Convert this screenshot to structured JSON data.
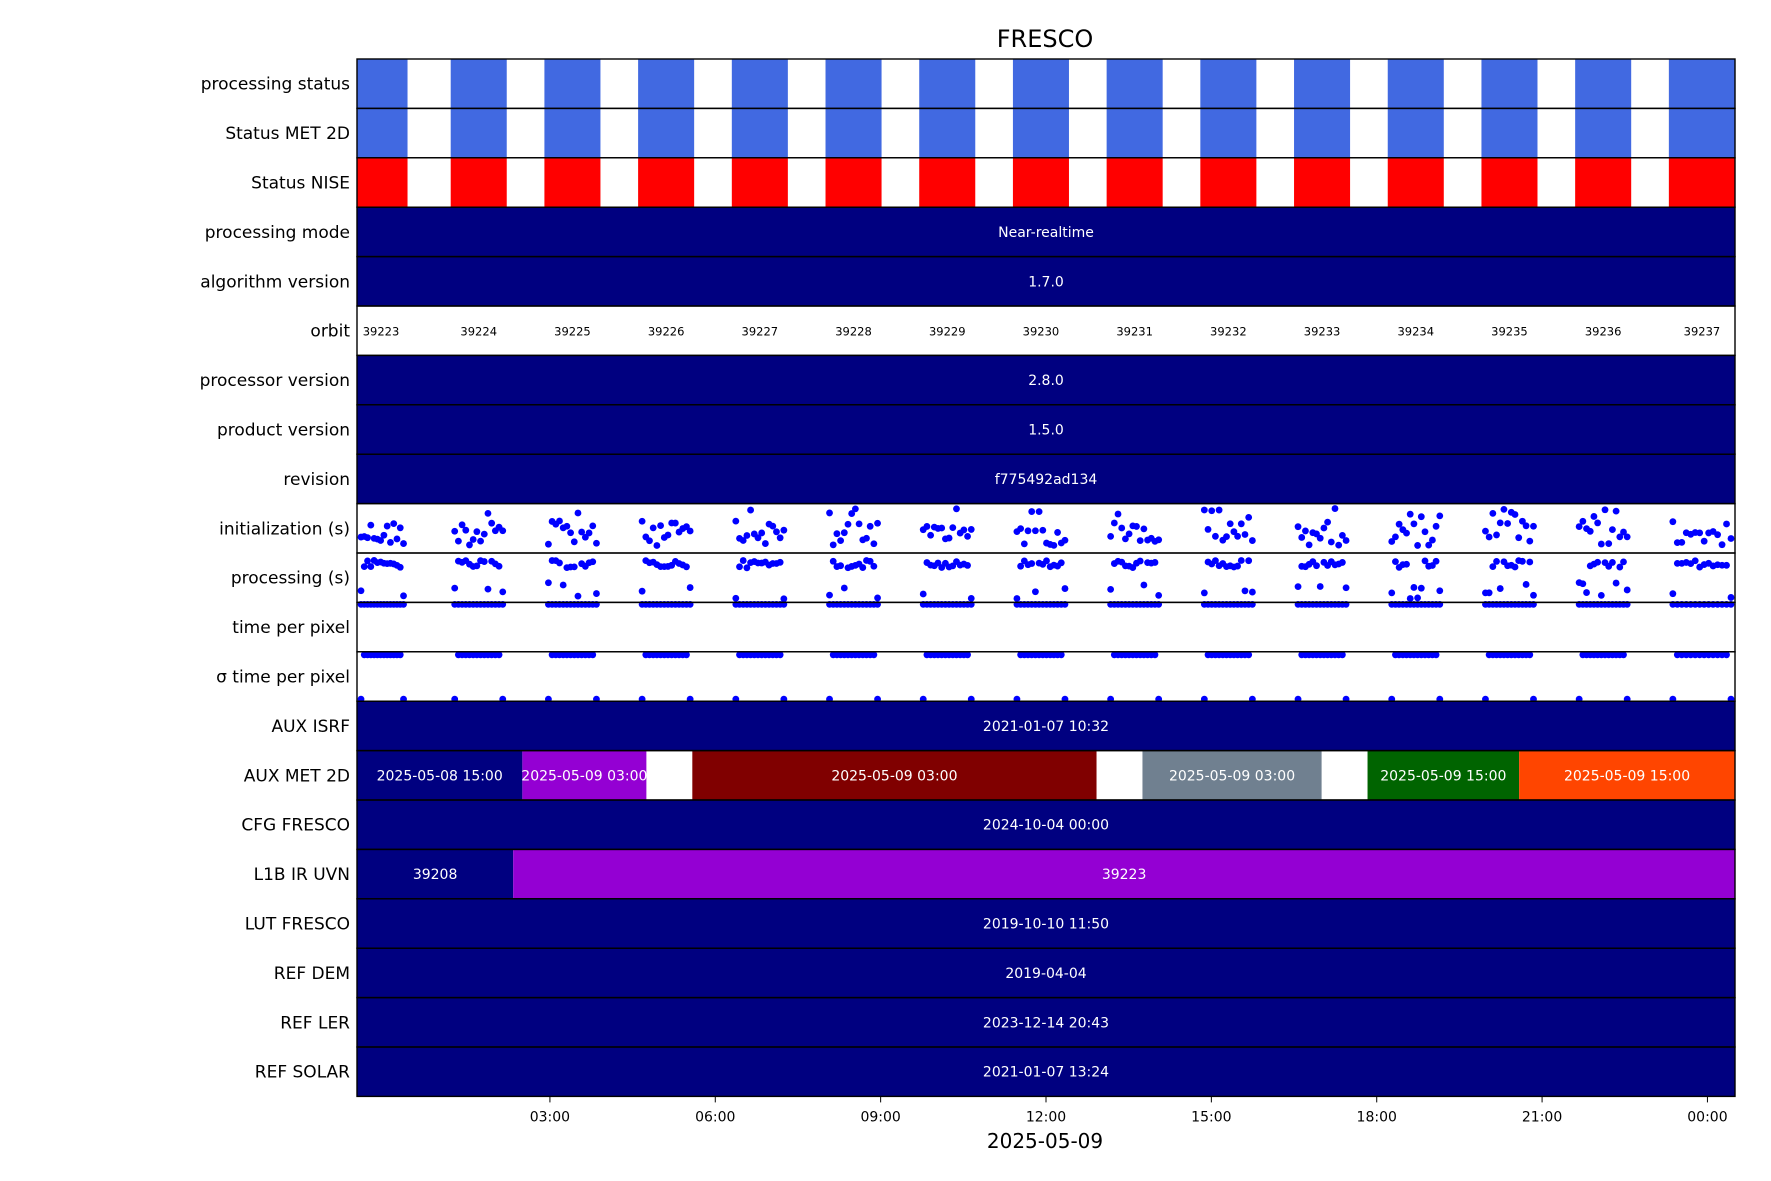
{
  "chart_data": {
    "type": "timeline",
    "title": "FRESCO",
    "xlabel": "2025-05-09",
    "x_range": [
      "2025-05-08 23:30",
      "2025-05-10 00:30"
    ],
    "x_ticks": [
      "03:00",
      "06:00",
      "09:00",
      "12:00",
      "15:00",
      "18:00",
      "21:00",
      "00:00"
    ],
    "x_tick_times": [
      "2025-05-09 03:00",
      "2025-05-09 06:00",
      "2025-05-09 09:00",
      "2025-05-09 12:00",
      "2025-05-09 15:00",
      "2025-05-09 18:00",
      "2025-05-09 21:00",
      "2025-05-10 00:00"
    ],
    "orbit_windows": [
      {
        "orbit": "39223",
        "start": "2025-05-08 23:30",
        "end": "2025-05-09 00:25"
      },
      {
        "orbit": "39224",
        "start": "2025-05-09 01:12",
        "end": "2025-05-09 02:13"
      },
      {
        "orbit": "39225",
        "start": "2025-05-09 02:54",
        "end": "2025-05-09 03:55"
      },
      {
        "orbit": "39226",
        "start": "2025-05-09 04:36",
        "end": "2025-05-09 05:37"
      },
      {
        "orbit": "39227",
        "start": "2025-05-09 06:18",
        "end": "2025-05-09 07:19"
      },
      {
        "orbit": "39228",
        "start": "2025-05-09 08:00",
        "end": "2025-05-09 09:01"
      },
      {
        "orbit": "39229",
        "start": "2025-05-09 09:42",
        "end": "2025-05-09 10:43"
      },
      {
        "orbit": "39230",
        "start": "2025-05-09 11:24",
        "end": "2025-05-09 12:25"
      },
      {
        "orbit": "39231",
        "start": "2025-05-09 13:06",
        "end": "2025-05-09 14:07"
      },
      {
        "orbit": "39232",
        "start": "2025-05-09 14:48",
        "end": "2025-05-09 15:49"
      },
      {
        "orbit": "39233",
        "start": "2025-05-09 16:30",
        "end": "2025-05-09 17:31"
      },
      {
        "orbit": "39234",
        "start": "2025-05-09 18:12",
        "end": "2025-05-09 19:13"
      },
      {
        "orbit": "39235",
        "start": "2025-05-09 19:54",
        "end": "2025-05-09 20:55"
      },
      {
        "orbit": "39236",
        "start": "2025-05-09 21:36",
        "end": "2025-05-09 22:37"
      },
      {
        "orbit": "39237",
        "start": "2025-05-09 23:18",
        "end": "2025-05-10 00:30"
      }
    ],
    "rows": [
      {
        "label": "processing status",
        "kind": "orbit_status",
        "color": "#4169e1"
      },
      {
        "label": "Status MET 2D",
        "kind": "orbit_status",
        "color": "#4169e1"
      },
      {
        "label": "Status NISE",
        "kind": "orbit_status",
        "color": "#ff0000"
      },
      {
        "label": "processing mode",
        "kind": "segments",
        "segments": [
          {
            "start": "2025-05-08 23:30",
            "end": "2025-05-10 00:30",
            "value": "Near-realtime",
            "color": "#000080"
          }
        ]
      },
      {
        "label": "algorithm version",
        "kind": "segments",
        "segments": [
          {
            "start": "2025-05-08 23:30",
            "end": "2025-05-10 00:30",
            "value": "1.7.0",
            "color": "#000080"
          }
        ]
      },
      {
        "label": "orbit",
        "kind": "orbit_labels"
      },
      {
        "label": "processor version",
        "kind": "segments",
        "segments": [
          {
            "start": "2025-05-08 23:30",
            "end": "2025-05-10 00:30",
            "value": "2.8.0",
            "color": "#000080"
          }
        ]
      },
      {
        "label": "product version",
        "kind": "segments",
        "segments": [
          {
            "start": "2025-05-08 23:30",
            "end": "2025-05-10 00:30",
            "value": "1.5.0",
            "color": "#000080"
          }
        ]
      },
      {
        "label": "revision",
        "kind": "segments",
        "segments": [
          {
            "start": "2025-05-08 23:30",
            "end": "2025-05-10 00:30",
            "value": "f775492ad134",
            "color": "#000080"
          }
        ]
      },
      {
        "label": "initialization (s)",
        "kind": "scatter",
        "pattern": "init"
      },
      {
        "label": "processing (s)",
        "kind": "scatter",
        "pattern": "proc"
      },
      {
        "label": "time per pixel",
        "kind": "scatter",
        "pattern": "tpp"
      },
      {
        "label": "σ time per pixel",
        "kind": "scatter",
        "pattern": "sigma"
      },
      {
        "label": "AUX ISRF",
        "kind": "segments",
        "segments": [
          {
            "start": "2025-05-08 23:30",
            "end": "2025-05-10 00:30",
            "value": "2021-01-07 10:32",
            "color": "#000080"
          }
        ]
      },
      {
        "label": "AUX MET 2D",
        "kind": "segments",
        "segments": [
          {
            "start": "2025-05-08 23:30",
            "end": "2025-05-09 02:30",
            "value": "2025-05-08 15:00",
            "color": "#000080"
          },
          {
            "start": "2025-05-09 02:30",
            "end": "2025-05-09 04:45",
            "value": "2025-05-09 03:00",
            "color": "#9400d3"
          },
          {
            "start": "2025-05-09 05:35",
            "end": "2025-05-09 12:55",
            "value": "2025-05-09 03:00",
            "color": "#800000"
          },
          {
            "start": "2025-05-09 13:45",
            "end": "2025-05-09 17:00",
            "value": "2025-05-09 03:00",
            "color": "#708090"
          },
          {
            "start": "2025-05-09 17:50",
            "end": "2025-05-09 20:35",
            "value": "2025-05-09 15:00",
            "color": "#006400"
          },
          {
            "start": "2025-05-09 20:35",
            "end": "2025-05-10 03:10",
            "value": "2025-05-09 15:00",
            "color": "#ff4500"
          },
          {
            "start": "2025-05-10 04:00",
            "end": "2025-05-10 08:00",
            "value": "2025-05-09 15:00",
            "color": "#000080"
          }
        ]
      },
      {
        "label": "CFG FRESCO",
        "kind": "segments",
        "segments": [
          {
            "start": "2025-05-08 23:30",
            "end": "2025-05-10 00:30",
            "value": "2024-10-04 00:00",
            "color": "#000080"
          }
        ]
      },
      {
        "label": "L1B IR UVN",
        "kind": "segments",
        "segments": [
          {
            "start": "2025-05-08 23:30",
            "end": "2025-05-09 02:20",
            "value": "39208",
            "color": "#000080"
          },
          {
            "start": "2025-05-09 02:20",
            "end": "2025-05-10 00:30",
            "value": "39223",
            "color": "#9400d3"
          }
        ]
      },
      {
        "label": "LUT FRESCO",
        "kind": "segments",
        "segments": [
          {
            "start": "2025-05-08 23:30",
            "end": "2025-05-10 00:30",
            "value": "2019-10-10 11:50",
            "color": "#000080"
          }
        ]
      },
      {
        "label": "REF DEM",
        "kind": "segments",
        "segments": [
          {
            "start": "2025-05-08 23:30",
            "end": "2025-05-10 00:30",
            "value": "2019-04-04",
            "color": "#000080"
          }
        ]
      },
      {
        "label": "REF LER",
        "kind": "segments",
        "segments": [
          {
            "start": "2025-05-08 23:30",
            "end": "2025-05-10 00:30",
            "value": "2023-12-14 20:43",
            "color": "#000080"
          }
        ]
      },
      {
        "label": "REF SOLAR",
        "kind": "segments",
        "segments": [
          {
            "start": "2025-05-08 23:30",
            "end": "2025-05-10 00:30",
            "value": "2021-01-07 13:24",
            "color": "#000080"
          }
        ]
      }
    ]
  }
}
